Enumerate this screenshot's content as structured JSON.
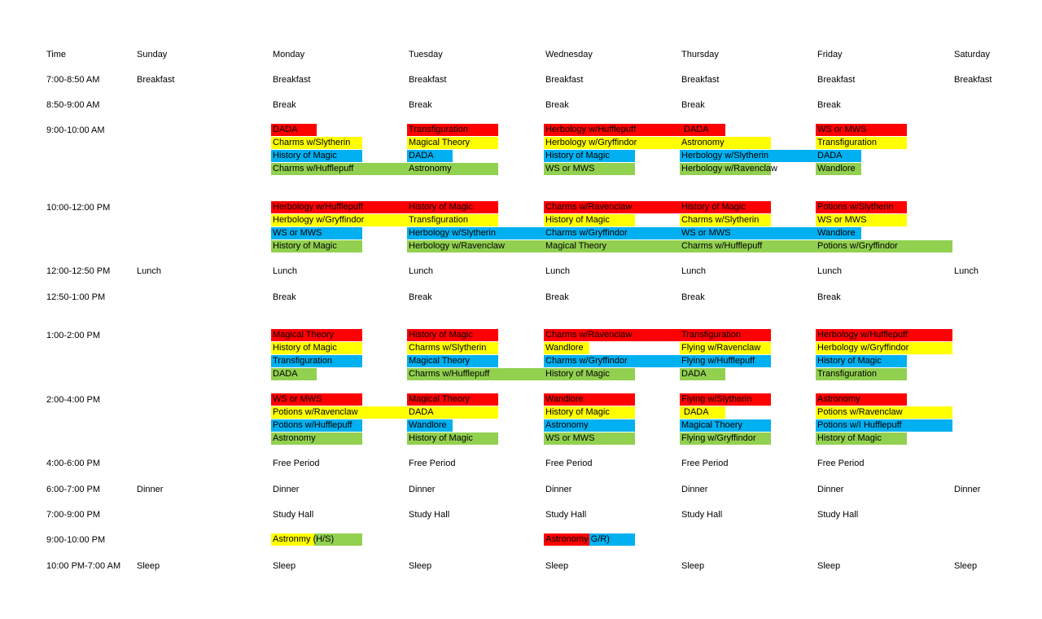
{
  "colors": {
    "red": "#ff0000",
    "yellow": "#ffff00",
    "blue": "#00b0f0",
    "green": "#92d050"
  },
  "headers": [
    "Time",
    "Sunday",
    "Monday",
    "Tuesday",
    "Wednesday",
    "Thursday",
    "Friday",
    "Saturday"
  ],
  "times": [
    "7:00-8:50 AM",
    "8:50-9:00 AM",
    "9:00-10:00 AM",
    "10:00-12:00 PM",
    "12:00-12:50 PM",
    "12:50-1:00 PM",
    "1:00-2:00 PM",
    "2:00-4:00 PM",
    "4:00-6:00 PM",
    "6:00-7:00 PM",
    "7:00-9:00 PM",
    "9:00-10:00 PM",
    "10:00 PM-7:00 AM"
  ],
  "plain": {
    "breakfast": [
      "Breakfast",
      "Breakfast",
      "Breakfast",
      "Breakfast",
      "Breakfast",
      "Breakfast",
      "Breakfast"
    ],
    "break_morning": [
      "Break",
      "Break",
      "Break",
      "Break",
      "Break"
    ],
    "lunch": [
      "Lunch",
      "Lunch",
      "Lunch",
      "Lunch",
      "Lunch",
      "Lunch",
      "Lunch"
    ],
    "break_afternoon": [
      "Break",
      "Break",
      "Break",
      "Break",
      "Break"
    ],
    "free_period": [
      "Free Period",
      "Free Period",
      "Free Period",
      "Free Period",
      "Free Period"
    ],
    "dinner": [
      "Dinner",
      "Dinner",
      "Dinner",
      "Dinner",
      "Dinner",
      "Dinner",
      "Dinner"
    ],
    "study_hall": [
      "Study Hall",
      "Study Hall",
      "Study Hall",
      "Study Hall",
      "Study Hall"
    ],
    "sleep": [
      "Sleep",
      "Sleep",
      "Sleep",
      "Sleep",
      "Sleep",
      "Sleep",
      "Sleep"
    ]
  },
  "classes": {
    "b9": {
      "mon": [
        {
          "text": "DADA",
          "color": "red"
        },
        {
          "text": "Charms w/Slytherin",
          "color": "yellow"
        },
        {
          "text": "History of Magic",
          "color": "blue"
        },
        {
          "text": "Charms w/Hufflepuff",
          "color": "green"
        }
      ],
      "tue": [
        {
          "text": "Transfiguration",
          "color": "red"
        },
        {
          "text": "Magical Theory",
          "color": "yellow"
        },
        {
          "text": "DADA",
          "color": "blue"
        },
        {
          "text": "Astronomy",
          "color": "green"
        }
      ],
      "wed": [
        {
          "text": "Herbology w/Hufflepuff",
          "color": "red"
        },
        {
          "text": "Herbology w/Gryffindor",
          "color": "yellow"
        },
        {
          "text": "History of Magic",
          "color": "blue"
        },
        {
          "text": "WS or MWS",
          "color": "green"
        }
      ],
      "thu": [
        {
          "text": "DADA",
          "color": "red"
        },
        {
          "text": "Astronomy",
          "color": "yellow"
        },
        {
          "text": "Herbology w/Slytherin",
          "color": "blue"
        },
        {
          "text": "Herbology w/Ravenclaw",
          "color": "green"
        }
      ],
      "fri": [
        {
          "text": "WS or MWS",
          "color": "red"
        },
        {
          "text": "Transfiguration",
          "color": "yellow"
        },
        {
          "text": "DADA",
          "color": "blue"
        },
        {
          "text": "Wandlore",
          "color": "green"
        }
      ]
    },
    "b10": {
      "mon": [
        {
          "text": "Herbology w/Hufflepuff",
          "color": "red"
        },
        {
          "text": "Herbology w/Gryffindor",
          "color": "yellow"
        },
        {
          "text": "WS or MWS",
          "color": "blue"
        },
        {
          "text": "History of Magic",
          "color": "green"
        }
      ],
      "tue": [
        {
          "text": "History of Magic",
          "color": "red"
        },
        {
          "text": "Transfiguration",
          "color": "yellow"
        },
        {
          "text": "Herbology w/Slytherin",
          "color": "blue"
        },
        {
          "text": "Herbology w/Ravenclaw",
          "color": "green"
        }
      ],
      "wed": [
        {
          "text": "Charms w/Ravenclaw",
          "color": "red"
        },
        {
          "text": "History of Magic",
          "color": "yellow"
        },
        {
          "text": "Charms w/Gryffindor",
          "color": "blue"
        },
        {
          "text": "Magical Theory",
          "color": "green"
        }
      ],
      "thu": [
        {
          "text": "History of Magic",
          "color": "red"
        },
        {
          "text": "Charms w/Slytherin",
          "color": "yellow"
        },
        {
          "text": "WS or MWS",
          "color": "blue"
        },
        {
          "text": "Charms w/Hufflepuff",
          "color": "green"
        }
      ],
      "fri": [
        {
          "text": "Potions w/Slytherin",
          "color": "red"
        },
        {
          "text": "WS or MWS",
          "color": "yellow"
        },
        {
          "text": "Wandlore",
          "color": "blue"
        },
        {
          "text": "Potions w/Gryffindor",
          "color": "green"
        }
      ]
    },
    "b1": {
      "mon": [
        {
          "text": "Magical Theory",
          "color": "red"
        },
        {
          "text": "History of Magic",
          "color": "yellow"
        },
        {
          "text": "Transfiguration",
          "color": "blue"
        },
        {
          "text": "DADA",
          "color": "green"
        }
      ],
      "tue": [
        {
          "text": "History of Magic",
          "color": "red"
        },
        {
          "text": "Charms w/Slytherin",
          "color": "yellow"
        },
        {
          "text": "Magical Theory",
          "color": "blue"
        },
        {
          "text": "Charms w/Hufflepuff",
          "color": "green"
        }
      ],
      "wed": [
        {
          "text": "Charms w/Ravenclaw",
          "color": "red"
        },
        {
          "text": "Wandlore",
          "color": "yellow"
        },
        {
          "text": "Charms w/Gryffindor",
          "color": "blue"
        },
        {
          "text": "History of Magic",
          "color": "green"
        }
      ],
      "thu": [
        {
          "text": "Transfiguration",
          "color": "red"
        },
        {
          "text": "Flying w/Ravenclaw",
          "color": "yellow"
        },
        {
          "text": "Flying w/Hufflepuff",
          "color": "blue"
        },
        {
          "text": "DADA",
          "color": "green"
        }
      ],
      "fri": [
        {
          "text": "Herbology w/Hufflepuff",
          "color": "red"
        },
        {
          "text": "Herbology w/Gryffindor",
          "color": "yellow"
        },
        {
          "text": "History of Magic",
          "color": "blue"
        },
        {
          "text": "Transfiguration",
          "color": "green"
        }
      ]
    },
    "b2": {
      "mon": [
        {
          "text": "WS or MWS",
          "color": "red"
        },
        {
          "text": "Potions w/Ravenclaw",
          "color": "yellow"
        },
        {
          "text": "Potions w/Hufflepuff",
          "color": "blue"
        },
        {
          "text": "Astronomy",
          "color": "green"
        }
      ],
      "tue": [
        {
          "text": "Magical Theory",
          "color": "red"
        },
        {
          "text": "DADA",
          "color": "yellow"
        },
        {
          "text": "Wandlore",
          "color": "blue"
        },
        {
          "text": "History of Magic",
          "color": "green"
        }
      ],
      "wed": [
        {
          "text": "Wandlore",
          "color": "red"
        },
        {
          "text": "History of Magic",
          "color": "yellow"
        },
        {
          "text": "Astronomy",
          "color": "blue"
        },
        {
          "text": "WS or MWS",
          "color": "green"
        }
      ],
      "thu": [
        {
          "text": "Flying w/Slytherin",
          "color": "red"
        },
        {
          "text": "DADA",
          "color": "yellow"
        },
        {
          "text": "Magical Thoery",
          "color": "blue"
        },
        {
          "text": "Flying w/Gryffindor",
          "color": "green"
        }
      ],
      "fri": [
        {
          "text": "Astronomy",
          "color": "red"
        },
        {
          "text": "Potions w/Ravenclaw",
          "color": "yellow"
        },
        {
          "text": "Potions w/I Hufflepuff",
          "color": "blue"
        },
        {
          "text": "History of Magic",
          "color": "green"
        }
      ]
    },
    "night": {
      "mon": {
        "a": "Astronmy ",
        "b": "(H/S)"
      },
      "wed": {
        "a": "Astronomy",
        "b": " G/R)"
      }
    }
  }
}
